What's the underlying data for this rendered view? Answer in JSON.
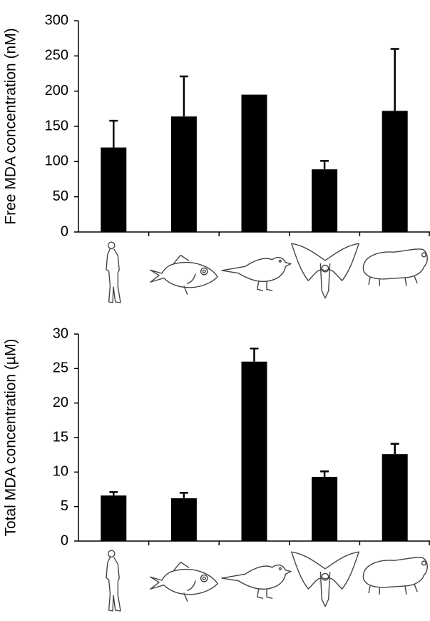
{
  "chart_data": [
    {
      "type": "bar",
      "y_label": "Free MDA concentration (nM)",
      "categories": [
        null,
        null,
        null,
        null,
        null
      ],
      "values": [
        120,
        164,
        195,
        89,
        172
      ],
      "errors": [
        38,
        57,
        null,
        12,
        88
      ],
      "color": "#000000",
      "ylim": [
        0,
        300
      ],
      "yticks": [
        0,
        50,
        100,
        150,
        200,
        250,
        300
      ]
    },
    {
      "type": "bar",
      "y_label": "Total MDA concentration (µM)",
      "categories": [
        null,
        null,
        null,
        null,
        null
      ],
      "values": [
        6.6,
        6.2,
        26,
        9.3,
        12.6
      ],
      "errors": [
        0.5,
        0.8,
        1.9,
        0.8,
        1.5
      ],
      "color": "#000000",
      "ylim": [
        0,
        30
      ],
      "yticks": [
        0,
        5,
        10,
        15,
        20,
        25,
        30
      ]
    }
  ]
}
